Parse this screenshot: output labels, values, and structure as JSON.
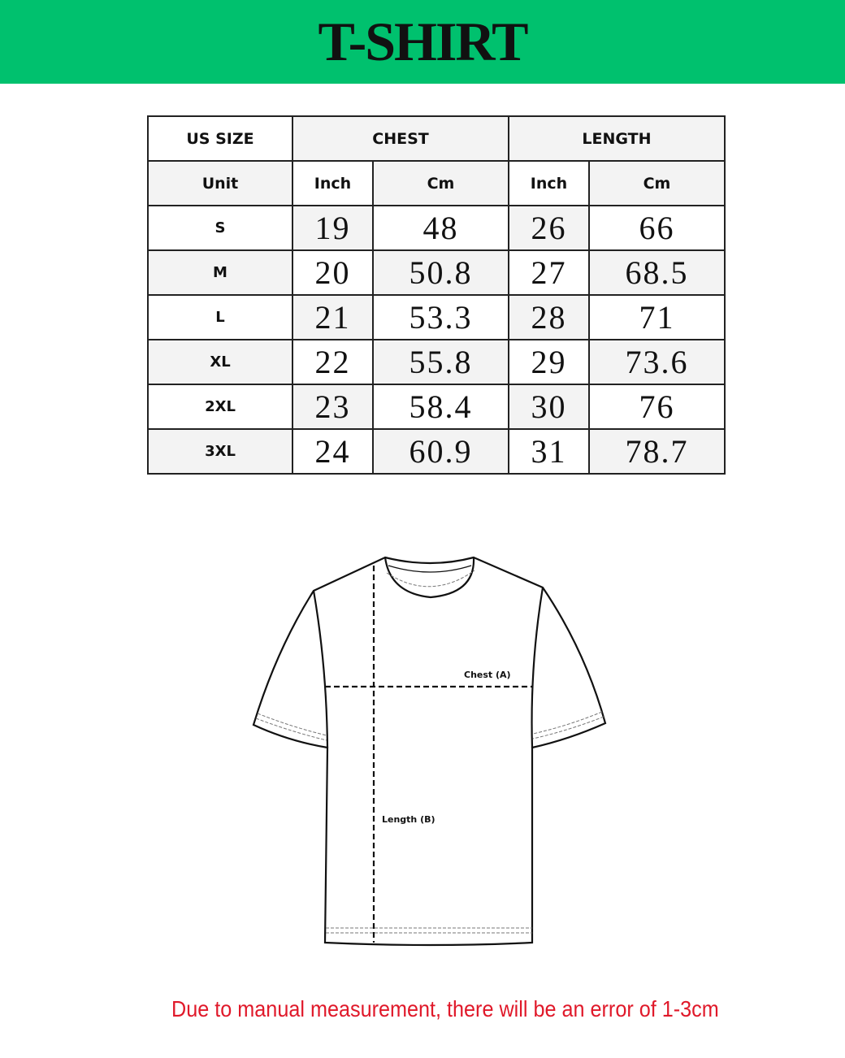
{
  "title": "T-SHIRT",
  "brand_color": "#00c16e",
  "table": {
    "header": {
      "size": "US SIZE",
      "chest": "CHEST",
      "length": "LENGTH"
    },
    "units": {
      "label": "Unit",
      "chest_inch": "Inch",
      "chest_cm": "Cm",
      "length_inch": "Inch",
      "length_cm": "Cm"
    },
    "rows": [
      {
        "size": "S",
        "chest_inch": "19",
        "chest_cm": "48",
        "length_inch": "26",
        "length_cm": "66"
      },
      {
        "size": "M",
        "chest_inch": "20",
        "chest_cm": "50.8",
        "length_inch": "27",
        "length_cm": "68.5"
      },
      {
        "size": "L",
        "chest_inch": "21",
        "chest_cm": "53.3",
        "length_inch": "28",
        "length_cm": "71"
      },
      {
        "size": "XL",
        "chest_inch": "22",
        "chest_cm": "55.8",
        "length_inch": "29",
        "length_cm": "73.6"
      },
      {
        "size": "2XL",
        "chest_inch": "23",
        "chest_cm": "58.4",
        "length_inch": "30",
        "length_cm": "76"
      },
      {
        "size": "3XL",
        "chest_inch": "24",
        "chest_cm": "60.9",
        "length_inch": "31",
        "length_cm": "78.7"
      }
    ]
  },
  "diagram": {
    "chest_label": "Chest (A)",
    "length_label": "Length (B)"
  },
  "note": "Due to manual measurement, there will be an error of 1-3cm",
  "note_color": "#e0192a"
}
